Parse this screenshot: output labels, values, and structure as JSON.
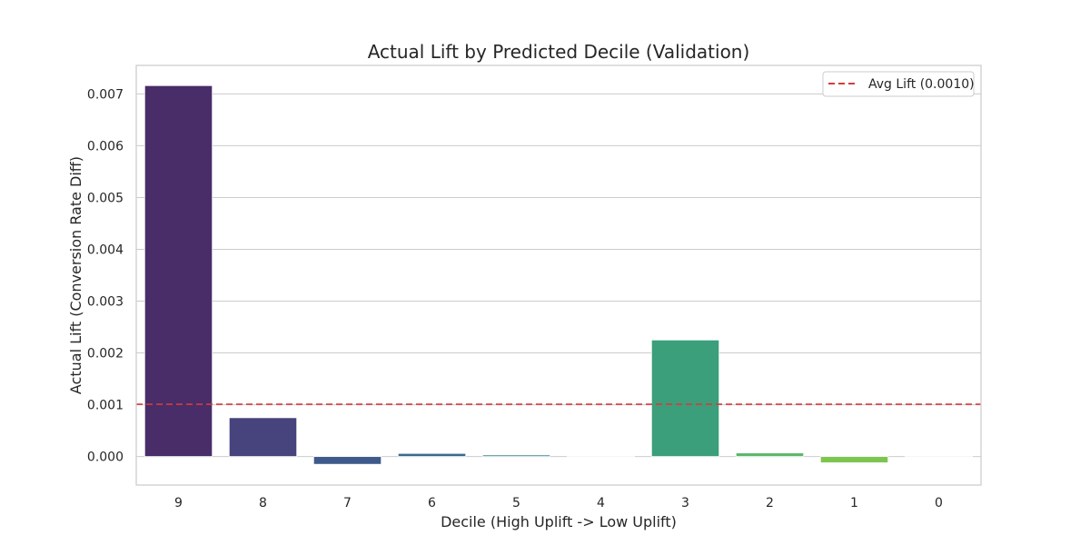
{
  "chart_data": {
    "type": "bar",
    "title": "Actual Lift by Predicted Decile (Validation)",
    "xlabel": "Decile (High Uplift -> Low Uplift)",
    "ylabel": "Actual Lift (Conversion Rate Diff)",
    "categories": [
      "9",
      "8",
      "7",
      "6",
      "5",
      "4",
      "3",
      "2",
      "1",
      "0"
    ],
    "values": [
      0.00716,
      0.00075,
      -0.00015,
      6e-05,
      3e-05,
      -1e-05,
      0.00225,
      7e-05,
      -0.00012,
      0.0
    ],
    "bar_colors": [
      "#482d68",
      "#47437c",
      "#3e5a8b",
      "#3a6b8c",
      "#2f7e8c",
      "#27918a",
      "#3a9f7a",
      "#5ab86a",
      "#7cc64f",
      "#b5d74a"
    ],
    "ylim": [
      -0.00055,
      0.00755
    ],
    "yticks": [
      "0.000",
      "0.001",
      "0.002",
      "0.003",
      "0.004",
      "0.005",
      "0.006",
      "0.007"
    ],
    "ytick_values": [
      0,
      0.001,
      0.002,
      0.003,
      0.004,
      0.005,
      0.006,
      0.007
    ],
    "reference_line": {
      "value": 0.00101,
      "label": "Avg Lift (0.0010)",
      "color": "#d33c3c",
      "style": "dashed"
    },
    "legend": {
      "placement": "top-right",
      "entries": [
        "Avg Lift (0.0010)"
      ]
    },
    "grid": "horizontal"
  }
}
